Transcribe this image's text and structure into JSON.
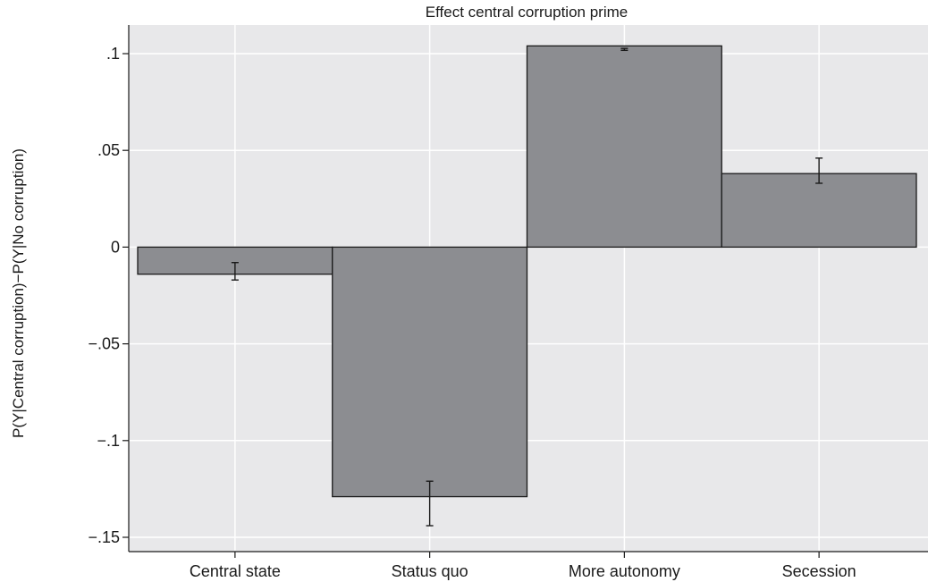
{
  "chart_data": {
    "type": "bar",
    "title": "Effect central corruption prime",
    "xlabel": "",
    "ylabel": "P(Y|Central corruption)−P(Y|No corruption)",
    "categories": [
      "Central state",
      "Status quo",
      "More autonomy",
      "Secession"
    ],
    "values": [
      -0.014,
      -0.129,
      0.104,
      0.038
    ],
    "error_bars": [
      {
        "low": -0.017,
        "high": -0.008
      },
      {
        "low": -0.144,
        "high": -0.121
      },
      {
        "low": 0.1017,
        "high": 0.1027
      },
      {
        "low": 0.033,
        "high": 0.046
      }
    ],
    "ylim": [
      -0.15,
      0.1
    ],
    "yticks": [
      {
        "value": 0.1,
        "label": ".1"
      },
      {
        "value": 0.05,
        "label": ".05"
      },
      {
        "value": 0,
        "label": "0"
      },
      {
        "value": -0.05,
        "label": "−.05"
      },
      {
        "value": -0.1,
        "label": "−.1"
      },
      {
        "value": -0.15,
        "label": "−.15"
      }
    ],
    "grid": true,
    "legend": "none",
    "colors": {
      "bar_fill": "#8c8d91",
      "bar_stroke": "#1a1a1a",
      "plot_background": "#e8e8ea",
      "grid": "#ffffff",
      "error_bar": "#1a1a1a"
    }
  }
}
